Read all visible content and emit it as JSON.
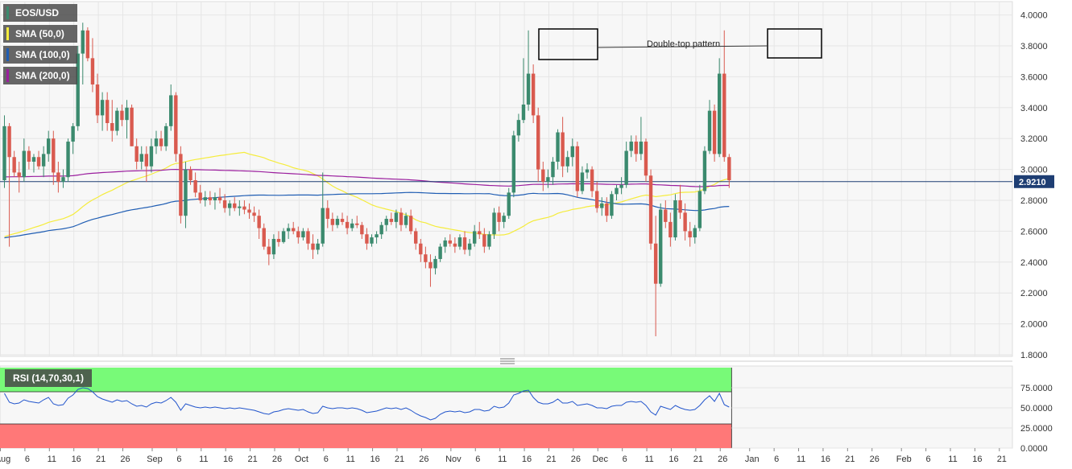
{
  "colors": {
    "up": "#3b8a6e",
    "down": "#d95a4f",
    "sma50": "#f5ec3c",
    "sma100": "#1f5db3",
    "sma200": "#9b1e9e",
    "price_line": "#1e3e73",
    "rsi_line": "#2255cc",
    "overbought_fill": "#78fa78",
    "oversold_fill": "#ff7878",
    "grid": "#e6e6e6",
    "background": "#f7f7f7"
  },
  "legend": {
    "symbol": "EOS/USD",
    "items": [
      {
        "label": "SMA (50,0)",
        "color": "#f5ec3c"
      },
      {
        "label": "SMA (100,0)",
        "color": "#1f5db3"
      },
      {
        "label": "SMA (200,0)",
        "color": "#9b1e9e"
      }
    ]
  },
  "rsi_panel": {
    "label": "RSI (14,70,30,1)"
  },
  "annotation": {
    "text": "Double-top pattern",
    "boxes": [
      {
        "start": "Nov 21",
        "end": "Nov 29",
        "low": 3.72,
        "high": 3.92
      },
      {
        "start": "Jan 6",
        "end": "Jan 14",
        "low": 3.72,
        "high": 3.92
      }
    ]
  },
  "chart_data": {
    "type": "candlestick",
    "symbol": "EOS/USD",
    "x_axis_ticks": [
      "Aug",
      "6",
      "11",
      "16",
      "21",
      "26",
      "Sep",
      "6",
      "11",
      "16",
      "21",
      "26",
      "Oct",
      "6",
      "11",
      "16",
      "21",
      "26",
      "Nov",
      "6",
      "11",
      "16",
      "21",
      "26",
      "Dec",
      "6",
      "11",
      "16",
      "21",
      "26",
      "Jan",
      "6",
      "11",
      "16",
      "21",
      "26",
      "Feb",
      "6",
      "11",
      "16",
      "21"
    ],
    "price_axis": {
      "ylim": [
        1.8,
        4.0
      ],
      "ticks": [
        "4.0000",
        "3.8000",
        "3.6000",
        "3.4000",
        "3.2000",
        "3.0000",
        "2.8000",
        "2.6000",
        "2.4000",
        "2.2000",
        "2.0000",
        "1.8000"
      ]
    },
    "current_price": "2.9210",
    "rsi_axis": {
      "ylim": [
        0,
        100
      ],
      "ticks": [
        "75.0000",
        "50.0000",
        "25.0000",
        "0.0000"
      ],
      "overbought": 70,
      "oversold": 30
    },
    "candles_ohlc": [
      [
        2.93,
        3.35,
        2.88,
        3.28
      ],
      [
        3.28,
        3.3,
        2.5,
        3.08
      ],
      [
        3.08,
        3.12,
        2.95,
        2.98
      ],
      [
        2.98,
        3.05,
        2.85,
        2.95
      ],
      [
        2.95,
        3.2,
        2.92,
        3.12
      ],
      [
        3.12,
        3.15,
        3.0,
        3.05
      ],
      [
        3.05,
        3.1,
        2.98,
        3.08
      ],
      [
        3.08,
        3.12,
        3.0,
        3.02
      ],
      [
        3.02,
        3.15,
        2.95,
        3.1
      ],
      [
        3.1,
        3.25,
        3.05,
        3.2
      ],
      [
        3.2,
        3.25,
        2.9,
        2.98
      ],
      [
        2.98,
        3.05,
        2.85,
        2.92
      ],
      [
        2.92,
        3.0,
        2.88,
        2.95
      ],
      [
        2.95,
        3.2,
        2.92,
        3.18
      ],
      [
        3.18,
        3.3,
        3.1,
        3.28
      ],
      [
        3.28,
        3.8,
        3.25,
        3.75
      ],
      [
        3.75,
        3.95,
        3.55,
        3.9
      ],
      [
        3.9,
        3.92,
        3.7,
        3.72
      ],
      [
        3.72,
        3.85,
        3.5,
        3.55
      ],
      [
        3.55,
        3.62,
        3.3,
        3.35
      ],
      [
        3.35,
        3.5,
        3.25,
        3.45
      ],
      [
        3.45,
        3.5,
        3.25,
        3.3
      ],
      [
        3.3,
        3.45,
        3.18,
        3.25
      ],
      [
        3.25,
        3.4,
        3.22,
        3.38
      ],
      [
        3.38,
        3.42,
        3.28,
        3.32
      ],
      [
        3.32,
        3.45,
        3.2,
        3.4
      ],
      [
        3.4,
        3.42,
        3.15,
        3.15
      ],
      [
        3.15,
        3.2,
        3.0,
        3.05
      ],
      [
        3.05,
        3.15,
        3.0,
        3.1
      ],
      [
        3.1,
        3.15,
        2.92,
        3.02
      ],
      [
        3.02,
        3.2,
        2.98,
        3.15
      ],
      [
        3.15,
        3.25,
        3.1,
        3.2
      ],
      [
        3.2,
        3.25,
        3.12,
        3.15
      ],
      [
        3.15,
        3.3,
        3.12,
        3.28
      ],
      [
        3.28,
        3.55,
        3.25,
        3.48
      ],
      [
        3.48,
        3.5,
        3.05,
        3.1
      ],
      [
        3.1,
        3.15,
        2.65,
        2.7
      ],
      [
        2.7,
        3.05,
        2.62,
        3.0
      ],
      [
        3.0,
        3.02,
        2.9,
        2.93
      ],
      [
        2.93,
        2.98,
        2.82,
        2.85
      ],
      [
        2.85,
        2.9,
        2.78,
        2.8
      ],
      [
        2.8,
        2.86,
        2.76,
        2.82
      ],
      [
        2.82,
        2.86,
        2.77,
        2.8
      ],
      [
        2.8,
        2.85,
        2.74,
        2.82
      ],
      [
        2.82,
        2.88,
        2.78,
        2.8
      ],
      [
        2.8,
        2.84,
        2.72,
        2.75
      ],
      [
        2.75,
        2.8,
        2.7,
        2.78
      ],
      [
        2.78,
        2.82,
        2.73,
        2.75
      ],
      [
        2.75,
        2.8,
        2.7,
        2.76
      ],
      [
        2.76,
        2.8,
        2.71,
        2.74
      ],
      [
        2.74,
        2.78,
        2.68,
        2.72
      ],
      [
        2.72,
        2.76,
        2.66,
        2.7
      ],
      [
        2.7,
        2.74,
        2.55,
        2.62
      ],
      [
        2.62,
        2.65,
        2.48,
        2.5
      ],
      [
        2.5,
        2.55,
        2.38,
        2.45
      ],
      [
        2.45,
        2.58,
        2.42,
        2.55
      ],
      [
        2.55,
        2.6,
        2.5,
        2.53
      ],
      [
        2.53,
        2.62,
        2.52,
        2.6
      ],
      [
        2.6,
        2.65,
        2.55,
        2.62
      ],
      [
        2.62,
        2.66,
        2.58,
        2.6
      ],
      [
        2.6,
        2.63,
        2.52,
        2.56
      ],
      [
        2.56,
        2.62,
        2.54,
        2.6
      ],
      [
        2.6,
        2.62,
        2.48,
        2.52
      ],
      [
        2.52,
        2.58,
        2.42,
        2.48
      ],
      [
        2.48,
        2.55,
        2.45,
        2.52
      ],
      [
        2.52,
        2.98,
        2.5,
        2.75
      ],
      [
        2.75,
        2.8,
        2.62,
        2.68
      ],
      [
        2.68,
        2.72,
        2.6,
        2.64
      ],
      [
        2.64,
        2.7,
        2.62,
        2.68
      ],
      [
        2.68,
        2.72,
        2.64,
        2.66
      ],
      [
        2.66,
        2.7,
        2.58,
        2.62
      ],
      [
        2.62,
        2.68,
        2.6,
        2.65
      ],
      [
        2.65,
        2.7,
        2.62,
        2.64
      ],
      [
        2.64,
        2.66,
        2.55,
        2.58
      ],
      [
        2.58,
        2.62,
        2.48,
        2.52
      ],
      [
        2.52,
        2.58,
        2.5,
        2.56
      ],
      [
        2.56,
        2.6,
        2.52,
        2.58
      ],
      [
        2.58,
        2.66,
        2.55,
        2.64
      ],
      [
        2.64,
        2.7,
        2.6,
        2.68
      ],
      [
        2.68,
        2.72,
        2.64,
        2.66
      ],
      [
        2.66,
        2.74,
        2.62,
        2.72
      ],
      [
        2.72,
        2.75,
        2.6,
        2.64
      ],
      [
        2.64,
        2.72,
        2.62,
        2.7
      ],
      [
        2.7,
        2.74,
        2.58,
        2.6
      ],
      [
        2.6,
        2.62,
        2.48,
        2.52
      ],
      [
        2.52,
        2.55,
        2.4,
        2.45
      ],
      [
        2.45,
        2.5,
        2.36,
        2.4
      ],
      [
        2.4,
        2.45,
        2.24,
        2.36
      ],
      [
        2.36,
        2.44,
        2.32,
        2.42
      ],
      [
        2.42,
        2.52,
        2.4,
        2.5
      ],
      [
        2.5,
        2.56,
        2.46,
        2.54
      ],
      [
        2.54,
        2.58,
        2.5,
        2.52
      ],
      [
        2.52,
        2.56,
        2.46,
        2.5
      ],
      [
        2.5,
        2.58,
        2.48,
        2.56
      ],
      [
        2.56,
        2.6,
        2.45,
        2.48
      ],
      [
        2.48,
        2.55,
        2.44,
        2.52
      ],
      [
        2.52,
        2.64,
        2.5,
        2.6
      ],
      [
        2.6,
        2.66,
        2.55,
        2.58
      ],
      [
        2.58,
        2.62,
        2.46,
        2.5
      ],
      [
        2.5,
        2.6,
        2.48,
        2.58
      ],
      [
        2.58,
        2.75,
        2.55,
        2.72
      ],
      [
        2.72,
        2.76,
        2.6,
        2.66
      ],
      [
        2.66,
        2.72,
        2.62,
        2.7
      ],
      [
        2.7,
        2.88,
        2.68,
        2.85
      ],
      [
        2.85,
        3.25,
        2.82,
        3.22
      ],
      [
        3.22,
        3.36,
        3.18,
        3.32
      ],
      [
        3.32,
        3.72,
        3.3,
        3.42
      ],
      [
        3.42,
        3.9,
        3.38,
        3.62
      ],
      [
        3.62,
        3.68,
        3.3,
        3.35
      ],
      [
        3.35,
        3.4,
        2.92,
        3.0
      ],
      [
        3.0,
        3.05,
        2.86,
        2.92
      ],
      [
        2.92,
        3.0,
        2.88,
        2.95
      ],
      [
        2.95,
        3.08,
        2.9,
        3.05
      ],
      [
        3.05,
        3.26,
        3.0,
        3.24
      ],
      [
        3.24,
        3.34,
        2.95,
        3.02
      ],
      [
        3.02,
        3.12,
        2.98,
        3.08
      ],
      [
        3.08,
        3.2,
        3.02,
        3.15
      ],
      [
        3.15,
        3.18,
        2.82,
        2.86
      ],
      [
        2.86,
        3.02,
        2.84,
        2.98
      ],
      [
        2.98,
        3.04,
        2.94,
        3.0
      ],
      [
        3.0,
        3.02,
        2.82,
        2.86
      ],
      [
        2.86,
        2.92,
        2.72,
        2.75
      ],
      [
        2.75,
        2.82,
        2.7,
        2.78
      ],
      [
        2.78,
        2.82,
        2.66,
        2.7
      ],
      [
        2.7,
        2.86,
        2.68,
        2.84
      ],
      [
        2.84,
        2.9,
        2.8,
        2.88
      ],
      [
        2.88,
        2.95,
        2.84,
        2.9
      ],
      [
        2.9,
        3.18,
        2.88,
        3.12
      ],
      [
        3.12,
        3.22,
        3.08,
        3.18
      ],
      [
        3.18,
        3.22,
        3.05,
        3.1
      ],
      [
        3.1,
        3.34,
        3.06,
        3.18
      ],
      [
        3.18,
        3.2,
        2.92,
        2.96
      ],
      [
        2.96,
        3.0,
        2.48,
        2.52
      ],
      [
        2.52,
        2.7,
        1.92,
        2.26
      ],
      [
        2.26,
        2.78,
        2.24,
        2.74
      ],
      [
        2.74,
        2.8,
        2.62,
        2.66
      ],
      [
        2.66,
        2.72,
        2.5,
        2.56
      ],
      [
        2.56,
        2.84,
        2.54,
        2.8
      ],
      [
        2.8,
        2.9,
        2.68,
        2.72
      ],
      [
        2.72,
        2.78,
        2.54,
        2.6
      ],
      [
        2.6,
        2.66,
        2.5,
        2.56
      ],
      [
        2.56,
        2.64,
        2.52,
        2.62
      ],
      [
        2.62,
        2.9,
        2.6,
        2.86
      ],
      [
        2.86,
        3.15,
        2.84,
        3.12
      ],
      [
        3.12,
        3.45,
        3.1,
        3.38
      ],
      [
        3.38,
        3.42,
        3.05,
        3.1
      ],
      [
        3.1,
        3.72,
        3.08,
        3.62
      ],
      [
        3.62,
        3.9,
        3.05,
        3.08
      ],
      [
        3.08,
        3.1,
        2.88,
        2.93
      ]
    ],
    "rsi_values": [
      68,
      57,
      55,
      56,
      60,
      58,
      57,
      56,
      60,
      63,
      55,
      53,
      54,
      62,
      66,
      73,
      75,
      74,
      70,
      64,
      61,
      59,
      57,
      60,
      58,
      59,
      55,
      52,
      53,
      51,
      55,
      57,
      56,
      59,
      63,
      57,
      47,
      55,
      53,
      51,
      50,
      51,
      50,
      51,
      50,
      49,
      50,
      49,
      50,
      49,
      48,
      47,
      45,
      43,
      42,
      45,
      46,
      48,
      49,
      48,
      47,
      48,
      45,
      43,
      44,
      52,
      50,
      49,
      50,
      50,
      49,
      50,
      49,
      47,
      44,
      45,
      46,
      48,
      50,
      49,
      50,
      48,
      50,
      47,
      43,
      40,
      38,
      35,
      37,
      42,
      45,
      46,
      45,
      46,
      44,
      45,
      48,
      48,
      46,
      47,
      52,
      50,
      51,
      56,
      66,
      68,
      71,
      72,
      63,
      57,
      55,
      55,
      57,
      61,
      56,
      56,
      58,
      53,
      54,
      55,
      53,
      50,
      50,
      49,
      52,
      53,
      53,
      57,
      58,
      57,
      58,
      53,
      45,
      41,
      52,
      50,
      48,
      53,
      50,
      48,
      47,
      48,
      53,
      60,
      65,
      58,
      68,
      54,
      51
    ]
  }
}
